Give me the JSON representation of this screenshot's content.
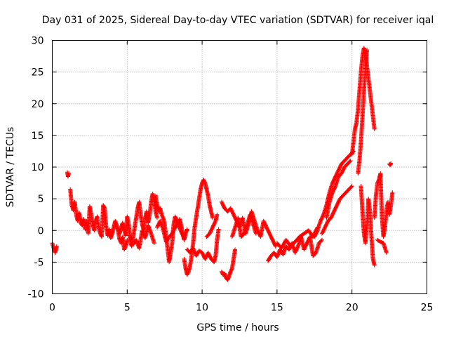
{
  "chart_data": {
    "type": "scatter",
    "title": "Day 031 of 2025, Sidereal Day-to-day VTEC variation (SDTVAR) for receiver iqal",
    "xlabel": "GPS time / hours",
    "ylabel": "SDTVAR / TECUs",
    "xlim": [
      0,
      25
    ],
    "ylim": [
      -10,
      30
    ],
    "xticks": [
      0,
      5,
      10,
      15,
      20,
      25
    ],
    "yticks": [
      -10,
      -5,
      0,
      5,
      10,
      15,
      20,
      25,
      30
    ],
    "x_tick_labels": [
      "0",
      "5",
      "10",
      "15",
      "20",
      "25"
    ],
    "y_tick_labels": [
      "-10",
      "-5",
      "0",
      "5",
      "10",
      "15",
      "20",
      "25",
      "30"
    ],
    "grid": true,
    "marker": "+",
    "marker_color": "#ff0000",
    "series": [
      {
        "name": "SDTVAR",
        "segments": [
          {
            "x": [
              0.0,
              0.1,
              0.2,
              0.3
            ],
            "y": [
              -2.0,
              -2.8,
              -3.5,
              -2.5
            ]
          },
          {
            "x": [
              1.0,
              1.05,
              1.1
            ],
            "y": [
              9.2,
              8.5,
              9.0
            ]
          },
          {
            "x": [
              1.2,
              1.3,
              1.4,
              1.5,
              1.6,
              1.7,
              1.8,
              1.9,
              2.0,
              2.1,
              2.2,
              2.3,
              2.4,
              2.5
            ],
            "y": [
              6.5,
              4.0,
              3.2,
              4.5,
              2.5,
              1.5,
              2.8,
              1.2,
              0.8,
              1.8,
              0.2,
              1.5,
              -0.5,
              3.8
            ]
          },
          {
            "x": [
              2.5,
              2.6,
              2.7,
              2.8,
              2.9,
              3.0,
              3.1,
              3.2,
              3.3,
              3.4,
              3.5,
              3.6,
              3.7,
              3.8,
              3.9,
              4.0,
              4.1,
              4.2,
              4.3,
              4.4,
              4.5,
              4.6,
              4.7,
              4.8,
              4.9,
              5.0
            ],
            "y": [
              3.8,
              2.5,
              1.0,
              0.0,
              1.5,
              2.2,
              0.5,
              -0.5,
              -1.0,
              4.0,
              3.5,
              0.5,
              -0.8,
              0.2,
              -1.2,
              -0.5,
              0.5,
              1.5,
              0.8,
              -0.2,
              -1.5,
              -2.0,
              -1.0,
              -3.0,
              -2.5,
              -1.5
            ]
          },
          {
            "x": [
              4.5,
              4.6,
              4.7,
              4.8,
              4.9,
              5.0,
              5.1,
              5.2,
              5.3,
              5.4,
              5.5,
              5.6,
              5.7,
              5.8,
              5.9,
              6.0,
              6.1,
              6.2,
              6.3,
              6.4,
              6.5,
              6.6,
              6.7,
              6.8,
              6.9,
              7.0
            ],
            "y": [
              -0.5,
              0.5,
              1.2,
              0.2,
              -0.8,
              2.2,
              1.0,
              -1.5,
              -2.5,
              -1.0,
              0.5,
              2.0,
              3.5,
              4.5,
              2.5,
              1.0,
              0.0,
              2.0,
              3.0,
              1.2,
              2.5,
              4.5,
              5.8,
              4.5,
              3.0,
              2.0
            ]
          },
          {
            "x": [
              5.2,
              5.4,
              5.6,
              5.8,
              6.0,
              6.2,
              6.4,
              6.6,
              6.8
            ],
            "y": [
              -1.0,
              -2.2,
              -1.5,
              -2.8,
              0.0,
              -1.2,
              0.8,
              -0.5,
              -2.0
            ]
          },
          {
            "x": [
              6.9,
              7.0,
              7.1,
              7.2,
              7.3,
              7.4,
              7.5,
              7.6,
              7.7,
              7.8,
              7.9,
              8.0,
              8.1,
              8.2,
              8.3,
              8.4,
              8.5,
              8.6,
              8.7,
              8.8,
              8.9,
              9.0
            ],
            "y": [
              5.5,
              4.0,
              3.0,
              3.5,
              2.5,
              2.0,
              1.0,
              -1.0,
              -3.0,
              -5.0,
              -3.5,
              -2.0,
              1.0,
              2.2,
              1.5,
              0.5,
              1.8,
              0.8,
              -0.5,
              -1.5,
              -0.5,
              0.2
            ]
          },
          {
            "x": [
              7.0,
              7.2,
              7.4,
              7.6,
              7.8,
              8.0,
              8.2,
              8.4,
              8.6,
              8.8
            ],
            "y": [
              0.5,
              1.5,
              0.2,
              -1.8,
              -1.0,
              -0.5,
              0.5,
              1.2,
              -0.2,
              -1.2
            ]
          },
          {
            "x": [
              8.8,
              8.9,
              9.0,
              9.1,
              9.2,
              9.3,
              9.4,
              9.5,
              9.6,
              9.7,
              9.8,
              9.9,
              10.0,
              10.1,
              10.2,
              10.3,
              10.4,
              10.5,
              10.6,
              10.7
            ],
            "y": [
              -4.5,
              -6.0,
              -7.0,
              -6.5,
              -5.5,
              -4.0,
              -2.0,
              0.5,
              2.0,
              3.5,
              5.0,
              6.5,
              7.5,
              8.0,
              7.5,
              6.5,
              5.5,
              4.0,
              3.0,
              2.0
            ]
          },
          {
            "x": [
              9.0,
              9.2,
              9.4,
              9.6,
              9.8,
              10.0,
              10.2,
              10.4,
              10.6,
              10.8,
              10.9,
              11.0,
              11.1
            ],
            "y": [
              -3.0,
              -3.5,
              -2.8,
              -4.0,
              -3.2,
              -3.5,
              -4.5,
              -3.5,
              -4.5,
              -5.0,
              -4.0,
              -1.5,
              0.2
            ]
          },
          {
            "x": [
              10.3,
              10.5,
              10.7,
              10.9,
              11.0
            ],
            "y": [
              -1.0,
              -0.5,
              0.5,
              1.5,
              2.5
            ]
          },
          {
            "x": [
              11.3,
              11.4,
              11.5,
              11.6,
              11.7,
              11.8,
              11.9,
              12.0,
              12.1,
              12.2
            ],
            "y": [
              -6.5,
              -7.0,
              -6.8,
              -7.5,
              -7.8,
              -7.2,
              -6.5,
              -6.0,
              -4.5,
              -3.0
            ]
          },
          {
            "x": [
              11.3,
              11.5,
              11.7,
              11.9,
              12.1,
              12.3,
              12.5,
              12.7,
              12.9,
              13.1,
              13.3,
              13.5,
              13.7,
              13.9,
              14.1,
              14.3,
              14.5,
              14.7,
              14.9
            ],
            "y": [
              4.5,
              3.5,
              3.0,
              3.5,
              2.5,
              1.5,
              0.5,
              2.0,
              -0.5,
              1.0,
              3.0,
              1.5,
              0.0,
              -1.0,
              1.5,
              0.5,
              -0.5,
              -1.5,
              -2.5
            ]
          },
          {
            "x": [
              12.0,
              12.2,
              12.4,
              12.6,
              12.8,
              13.0,
              13.2,
              13.4,
              13.6
            ],
            "y": [
              -1.0,
              0.5,
              2.0,
              -1.0,
              -0.5,
              0.8,
              2.5,
              1.0,
              -0.5
            ]
          },
          {
            "x": [
              14.4,
              14.6,
              14.8,
              15.0,
              15.2,
              15.4,
              15.6,
              15.8,
              16.0,
              16.2,
              16.4,
              16.6,
              16.8,
              17.0,
              17.2,
              17.4,
              17.6,
              17.8,
              18.0
            ],
            "y": [
              -4.8,
              -4.0,
              -3.5,
              -4.2,
              -3.0,
              -3.8,
              -2.5,
              -3.0,
              -2.0,
              -3.5,
              -2.5,
              -1.0,
              -3.0,
              -2.0,
              -1.0,
              -4.0,
              -3.5,
              -2.0,
              -1.5
            ]
          },
          {
            "x": [
              15.0,
              15.3,
              15.6,
              15.9,
              16.2,
              16.5,
              16.8,
              17.1,
              17.4,
              17.7
            ],
            "y": [
              -2.0,
              -2.8,
              -1.5,
              -2.5,
              -1.8,
              -1.0,
              -0.5,
              0.0,
              -1.0,
              0.5
            ]
          },
          {
            "x": [
              17.5,
              17.7,
              17.9,
              18.1,
              18.3,
              18.5,
              18.7,
              18.9,
              19.1,
              19.3,
              19.5,
              19.7,
              19.9,
              20.1
            ],
            "y": [
              -1.0,
              0.0,
              1.5,
              2.5,
              4.0,
              6.0,
              7.5,
              8.5,
              9.5,
              10.5,
              11.0,
              11.5,
              12.0,
              12.5
            ]
          },
          {
            "x": [
              18.0,
              18.2,
              18.4,
              18.6,
              18.8,
              19.0,
              19.2,
              19.4,
              19.6,
              19.8,
              20.0
            ],
            "y": [
              -0.5,
              0.5,
              1.5,
              2.0,
              3.0,
              4.0,
              5.0,
              5.5,
              6.0,
              6.5,
              7.0
            ]
          },
          {
            "x": [
              18.3,
              18.5,
              18.7,
              18.9,
              19.1,
              19.3,
              19.5,
              19.7,
              19.9
            ],
            "y": [
              2.0,
              4.5,
              6.0,
              7.0,
              8.5,
              9.0,
              10.0,
              10.5,
              11.0
            ]
          },
          {
            "x": [
              20.0,
              20.1,
              20.2,
              20.3,
              20.4,
              20.5,
              20.6,
              20.7,
              20.8,
              20.9,
              21.0,
              21.1,
              21.2,
              21.3,
              21.4,
              21.5
            ],
            "y": [
              12.0,
              14.0,
              16.0,
              17.0,
              19.0,
              22.0,
              25.0,
              27.5,
              28.8,
              28.0,
              26.0,
              24.0,
              22.0,
              20.0,
              18.0,
              16.0
            ]
          },
          {
            "x": [
              20.4,
              20.5,
              20.6,
              20.7,
              20.8,
              20.9,
              21.0
            ],
            "y": [
              9.0,
              11.0,
              14.0,
              18.0,
              22.0,
              26.0,
              28.5
            ]
          },
          {
            "x": [
              20.6,
              20.7,
              20.8,
              20.9,
              21.0,
              21.1,
              21.2,
              21.3,
              21.4,
              21.5
            ],
            "y": [
              7.0,
              3.0,
              -0.5,
              -2.0,
              1.0,
              5.0,
              3.0,
              -1.0,
              -4.5,
              -5.5
            ]
          },
          {
            "x": [
              21.5,
              21.6,
              21.7,
              21.8,
              21.9,
              22.0,
              22.1,
              22.2,
              22.3,
              22.4,
              22.5,
              22.6,
              22.7
            ],
            "y": [
              2.0,
              5.5,
              7.5,
              8.0,
              9.0,
              2.0,
              -1.0,
              0.5,
              3.0,
              4.5,
              2.5,
              4.0,
              6.0
            ]
          },
          {
            "x": [
              21.7,
              21.9,
              22.1,
              22.3
            ],
            "y": [
              -1.5,
              -1.8,
              -2.0,
              -3.5
            ]
          },
          {
            "x": [
              22.5,
              22.55,
              22.6
            ],
            "y": [
              10.5,
              10.3,
              10.6
            ]
          }
        ]
      }
    ]
  }
}
